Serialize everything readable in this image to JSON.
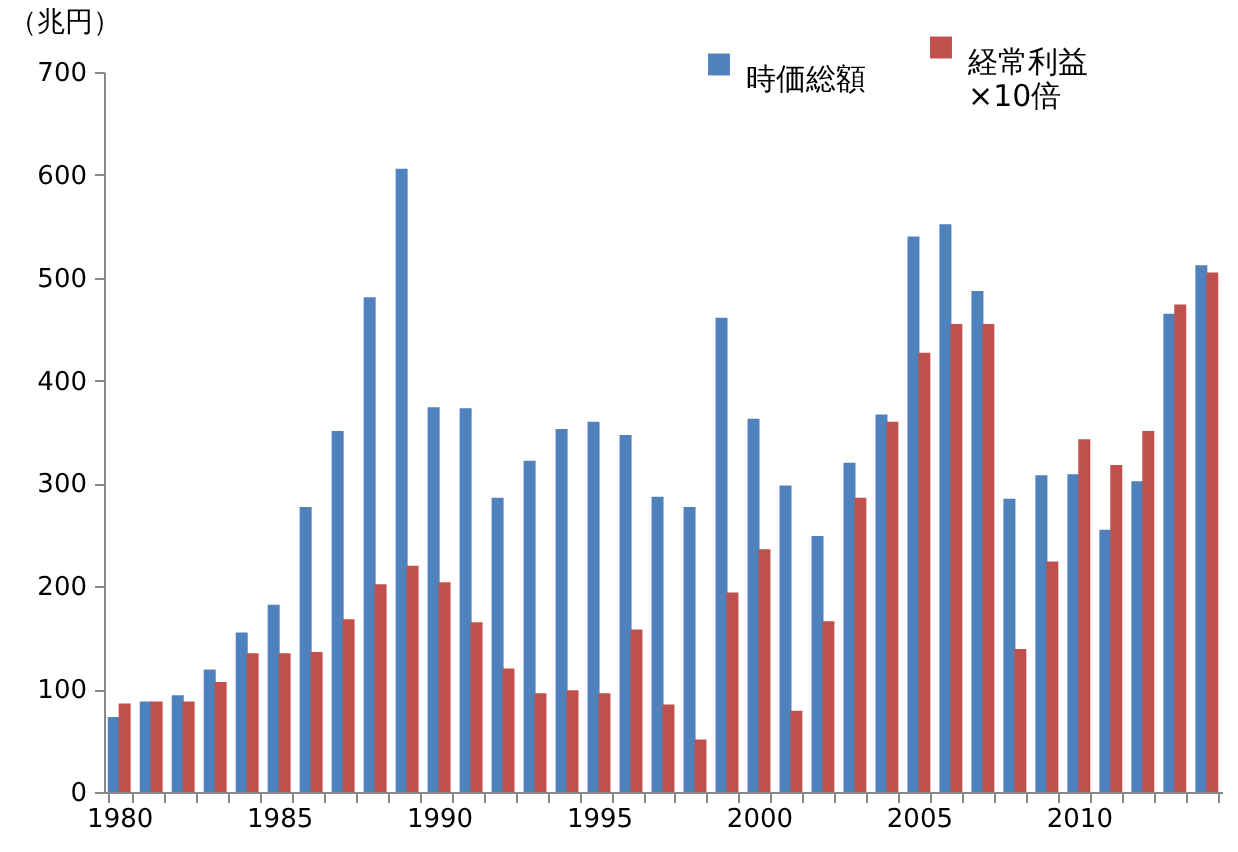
{
  "chart_data": {
    "type": "bar",
    "ylabel": "（兆円）",
    "categories": [
      "1980",
      null,
      null,
      null,
      null,
      "1985",
      null,
      null,
      null,
      null,
      "1990",
      null,
      null,
      null,
      null,
      "1995",
      null,
      null,
      null,
      null,
      "2000",
      null,
      null,
      null,
      null,
      "2005",
      null,
      null,
      null,
      null,
      "2010",
      null,
      null,
      null,
      null
    ],
    "series": [
      {
        "name": "時価総額",
        "color": "#4f81bd",
        "values": [
          73,
          88,
          94,
          119,
          155,
          182,
          277,
          351,
          481,
          606,
          374,
          373,
          286,
          322,
          353,
          360,
          347,
          287,
          277,
          461,
          363,
          298,
          249,
          320,
          367,
          540,
          552,
          487,
          285,
          308,
          309,
          255,
          302,
          465,
          512
        ]
      },
      {
        "name": "経常利益\n×10倍",
        "color": "#c0504d",
        "values": [
          86,
          88,
          88,
          107,
          135,
          135,
          136,
          168,
          202,
          220,
          204,
          165,
          120,
          96,
          99,
          96,
          158,
          85,
          51,
          194,
          236,
          79,
          166,
          286,
          360,
          427,
          455,
          455,
          139,
          224,
          343,
          318,
          351,
          474,
          505
        ]
      }
    ],
    "ylim": [
      0,
      700
    ],
    "yticks": [
      0,
      100,
      200,
      300,
      400,
      500,
      600,
      700
    ],
    "grid": false,
    "legend": "top right"
  }
}
